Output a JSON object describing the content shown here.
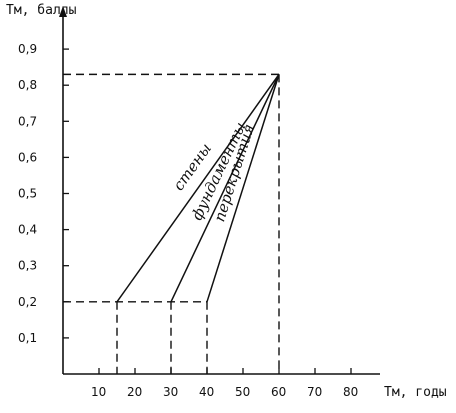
{
  "chart_data": {
    "type": "line",
    "ylabel": "Тм, баллы",
    "xlabel": "Тм, годы",
    "xlim": [
      0,
      90
    ],
    "ylim": [
      0,
      1.0
    ],
    "x_ticks": [
      10,
      20,
      30,
      40,
      50,
      60,
      70,
      80
    ],
    "x_tick_labels": [
      "10",
      "20",
      "30",
      "40",
      "50",
      "60",
      "70",
      "80"
    ],
    "y_ticks": [
      0.1,
      0.2,
      0.3,
      0.4,
      0.5,
      0.6,
      0.7,
      0.8,
      0.9
    ],
    "y_tick_labels": [
      "0,1",
      "0,2",
      "0,3",
      "0,4",
      "0,5",
      "0,6",
      "0,7",
      "0,8",
      "0,9"
    ],
    "grid": false,
    "legend": "none",
    "series": [
      {
        "name": "стены",
        "x": [
          15,
          60
        ],
        "y": [
          0.2,
          0.83
        ]
      },
      {
        "name": "фундаменты",
        "x": [
          30,
          60
        ],
        "y": [
          0.2,
          0.83
        ]
      },
      {
        "name": "перекрытия",
        "x": [
          40,
          60
        ],
        "y": [
          0.2,
          0.83
        ]
      }
    ],
    "reference_lines": {
      "horizontal_dashed_y": [
        0.2,
        0.83
      ],
      "vertical_dashed_x": [
        15,
        30,
        40,
        60
      ]
    }
  }
}
